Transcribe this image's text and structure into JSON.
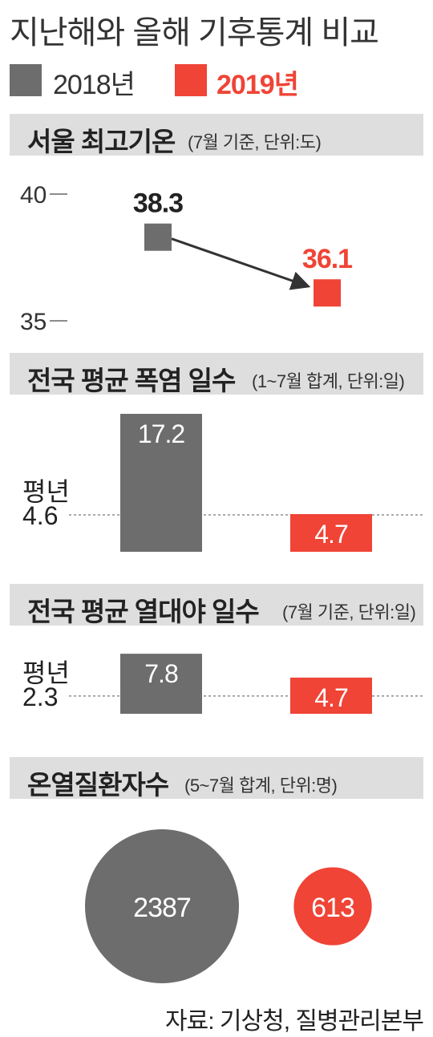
{
  "title": "지난해와 올해 기후통계 비교",
  "legend": {
    "items": [
      {
        "label": "2018년",
        "color": "#6d6d6d"
      },
      {
        "label": "2019년",
        "color": "#ef4436"
      }
    ]
  },
  "colors": {
    "y2018": "#6d6d6d",
    "y2019": "#ef4436",
    "header_bg": "#dedede"
  },
  "sections": [
    {
      "main": "서울 최고기온",
      "sub": "(7월 기준, 단위:도)"
    },
    {
      "main": "전국 평균 폭염 일수",
      "sub": "(1~7월 합계, 단위:일)"
    },
    {
      "main": "전국 평균 열대야 일수",
      "sub": "(7월 기준, 단위:일)"
    },
    {
      "main": "온열질환자수",
      "sub": "(5~7월 합계, 단위:명)"
    }
  ],
  "chart_data": [
    {
      "type": "line",
      "title": "서울 최고기온",
      "x": [
        "2018년",
        "2019년"
      ],
      "values": [
        38.3,
        36.1
      ],
      "value_labels": [
        "38.3",
        "36.1"
      ],
      "ylim": [
        35,
        40
      ],
      "ytick_labels": [
        "40",
        "35"
      ]
    },
    {
      "type": "bar",
      "title": "전국 평균 폭염 일수",
      "categories": [
        "2018년",
        "2019년"
      ],
      "values": [
        17.2,
        4.7
      ],
      "value_labels": [
        "17.2",
        "4.7"
      ],
      "reference": {
        "label": "평년",
        "value": 4.6,
        "value_label": "4.6"
      }
    },
    {
      "type": "bar",
      "title": "전국 평균 열대야 일수",
      "categories": [
        "2018년",
        "2019년"
      ],
      "values": [
        7.8,
        4.7
      ],
      "value_labels": [
        "7.8",
        "4.7"
      ],
      "reference": {
        "label": "평년",
        "value": 2.3,
        "value_label": "2.3"
      }
    },
    {
      "type": "bubble",
      "title": "온열질환자수",
      "categories": [
        "2018년",
        "2019년"
      ],
      "values": [
        2387,
        613
      ],
      "value_labels": [
        "2387",
        "613"
      ]
    }
  ],
  "source": "자료: 기상청, 질병관리본부"
}
